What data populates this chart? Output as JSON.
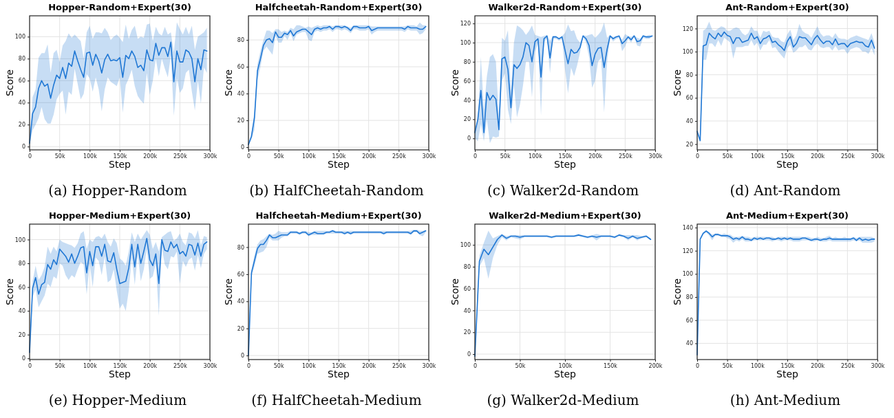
{
  "chart_data": [
    {
      "type": "line",
      "title": "Hopper-Random+Expert(30)",
      "xlabel": "Step",
      "ylabel": "Score",
      "annotations": [
        "(a) Hopper-Random"
      ],
      "grid": true,
      "xlim": [
        0,
        300000
      ],
      "ylim": [
        -3,
        119
      ],
      "xticks": [
        {
          "value": 0,
          "label": "0"
        },
        {
          "value": 50000,
          "label": "50k"
        },
        {
          "value": 100000,
          "label": "100k"
        },
        {
          "value": 150000,
          "label": "150k"
        },
        {
          "value": 200000,
          "label": "200k"
        },
        {
          "value": 250000,
          "label": "250k"
        },
        {
          "value": 300000,
          "label": "300k"
        }
      ],
      "yticks": [
        0,
        20,
        40,
        60,
        80,
        100
      ],
      "x": [
        0,
        5000,
        10000,
        15000,
        20000,
        25000,
        30000,
        35000,
        40000,
        45000,
        50000,
        55000,
        60000,
        65000,
        70000,
        75000,
        80000,
        85000,
        90000,
        95000,
        100000,
        105000,
        110000,
        115000,
        120000,
        125000,
        130000,
        135000,
        140000,
        145000,
        150000,
        155000,
        160000,
        165000,
        170000,
        175000,
        180000,
        185000,
        190000,
        195000,
        200000,
        205000,
        210000,
        215000,
        220000,
        225000,
        230000,
        235000,
        240000,
        245000,
        250000,
        255000,
        260000,
        265000,
        270000,
        275000,
        280000,
        285000,
        290000,
        295000
      ],
      "series": [
        {
          "color": "#1f77d4",
          "values": [
            3,
            30,
            36,
            53,
            60,
            55,
            57,
            44,
            56,
            65,
            62,
            72,
            62,
            76,
            73,
            87,
            78,
            70,
            63,
            85,
            86,
            74,
            84,
            78,
            67,
            79,
            84,
            78,
            79,
            78,
            81,
            63,
            83,
            80,
            87,
            82,
            72,
            74,
            69,
            88,
            79,
            78,
            94,
            83,
            90,
            90,
            82,
            95,
            59,
            87,
            77,
            77,
            88,
            86,
            80,
            59,
            80,
            70,
            88,
            87
          ],
          "upper": [
            4,
            45,
            52,
            81,
            85,
            85,
            93,
            67,
            85,
            88,
            77,
            92,
            96,
            103,
            99,
            102,
            99,
            96,
            80,
            104,
            110,
            98,
            104,
            104,
            103,
            108,
            104,
            97,
            100,
            102,
            99,
            95,
            111,
            98,
            106,
            110,
            98,
            100,
            99,
            111,
            112,
            96,
            109,
            103,
            101,
            109,
            102,
            104,
            86,
            113,
            107,
            102,
            109,
            102,
            110,
            88,
            100,
            102,
            104,
            108
          ],
          "lower": [
            2,
            15,
            20,
            26,
            36,
            25,
            21,
            21,
            29,
            43,
            48,
            51,
            29,
            50,
            47,
            71,
            57,
            43,
            48,
            66,
            62,
            50,
            63,
            52,
            32,
            52,
            63,
            59,
            57,
            55,
            63,
            31,
            56,
            62,
            70,
            55,
            46,
            42,
            39,
            67,
            47,
            60,
            80,
            64,
            80,
            71,
            63,
            83,
            28,
            62,
            49,
            53,
            67,
            70,
            50,
            33,
            60,
            39,
            72,
            67
          ]
        }
      ]
    },
    {
      "type": "line",
      "title": "Halfcheetah-Random+Expert(30)",
      "xlabel": "Step",
      "ylabel": "Score",
      "annotations": [
        "(b) HalfCheetah-Random"
      ],
      "grid": true,
      "xlim": [
        0,
        300000
      ],
      "ylim": [
        -2,
        98
      ],
      "xticks": [
        {
          "value": 0,
          "label": "0"
        },
        {
          "value": 50000,
          "label": "50k"
        },
        {
          "value": 100000,
          "label": "100k"
        },
        {
          "value": 150000,
          "label": "150k"
        },
        {
          "value": 200000,
          "label": "200k"
        },
        {
          "value": 250000,
          "label": "250k"
        },
        {
          "value": 300000,
          "label": "300k"
        }
      ],
      "yticks": [
        0,
        20,
        40,
        60,
        80
      ],
      "x": [
        0,
        5000,
        10000,
        15000,
        20000,
        25000,
        30000,
        35000,
        40000,
        45000,
        50000,
        55000,
        60000,
        65000,
        70000,
        75000,
        80000,
        85000,
        90000,
        95000,
        100000,
        105000,
        110000,
        115000,
        120000,
        125000,
        130000,
        135000,
        140000,
        145000,
        150000,
        155000,
        160000,
        165000,
        170000,
        175000,
        180000,
        185000,
        190000,
        195000,
        200000,
        205000,
        210000,
        215000,
        220000,
        225000,
        230000,
        235000,
        240000,
        245000,
        250000,
        255000,
        260000,
        265000,
        270000,
        275000,
        280000,
        285000,
        290000,
        295000
      ],
      "series": [
        {
          "color": "#1f77d4",
          "values": [
            2,
            8,
            22,
            57,
            66,
            76,
            80,
            81,
            78,
            86,
            82,
            82,
            85,
            84,
            87,
            83,
            86,
            87,
            88,
            88,
            86,
            84,
            88,
            89,
            88,
            89,
            89,
            90,
            88,
            90,
            90,
            89,
            90,
            89,
            87,
            90,
            90,
            89,
            89,
            89,
            90,
            87,
            88,
            89,
            89,
            89,
            89,
            89,
            89,
            89,
            89,
            89,
            88,
            90,
            89,
            89,
            89,
            88,
            88,
            90
          ],
          "upper": [
            3,
            10,
            27,
            62,
            72,
            80,
            87,
            87,
            85,
            88,
            88,
            86,
            87,
            86,
            89,
            88,
            91,
            91,
            90,
            89,
            90,
            89,
            90,
            91,
            90,
            91,
            91,
            91,
            90,
            91,
            91,
            91,
            91,
            90,
            89,
            91,
            91,
            91,
            91,
            91,
            91,
            90,
            90,
            90,
            90,
            90,
            90,
            90,
            90,
            90,
            90,
            90,
            90,
            91,
            91,
            91,
            90,
            93,
            91,
            91
          ],
          "lower": [
            1,
            6,
            13,
            50,
            60,
            72,
            75,
            72,
            69,
            83,
            78,
            78,
            83,
            80,
            85,
            79,
            84,
            85,
            86,
            86,
            80,
            79,
            86,
            87,
            86,
            87,
            87,
            88,
            86,
            88,
            88,
            87,
            88,
            87,
            85,
            88,
            88,
            87,
            87,
            87,
            88,
            84,
            86,
            87,
            87,
            87,
            87,
            87,
            87,
            87,
            87,
            87,
            86,
            88,
            87,
            87,
            87,
            84,
            85,
            88
          ]
        }
      ]
    },
    {
      "type": "line",
      "title": "Walker2d-Random+Expert(30)",
      "xlabel": "Step",
      "ylabel": "Score",
      "annotations": [
        "(c) Walker2d-Random"
      ],
      "grid": true,
      "xlim": [
        0,
        300000
      ],
      "ylim": [
        -12,
        128
      ],
      "xticks": [
        {
          "value": 0,
          "label": "0"
        },
        {
          "value": 50000,
          "label": "50k"
        },
        {
          "value": 100000,
          "label": "100k"
        },
        {
          "value": 150000,
          "label": "150k"
        },
        {
          "value": 200000,
          "label": "200k"
        },
        {
          "value": 250000,
          "label": "250k"
        },
        {
          "value": 300000,
          "label": "300k"
        }
      ],
      "yticks": [
        0,
        20,
        40,
        60,
        80,
        100,
        120
      ],
      "x": [
        0,
        5000,
        10000,
        15000,
        20000,
        25000,
        30000,
        35000,
        40000,
        45000,
        50000,
        55000,
        60000,
        65000,
        70000,
        75000,
        80000,
        85000,
        90000,
        95000,
        100000,
        105000,
        110000,
        115000,
        120000,
        125000,
        130000,
        135000,
        140000,
        145000,
        150000,
        155000,
        160000,
        165000,
        170000,
        175000,
        180000,
        185000,
        190000,
        195000,
        200000,
        205000,
        210000,
        215000,
        220000,
        225000,
        230000,
        235000,
        240000,
        245000,
        250000,
        255000,
        260000,
        265000,
        270000,
        275000,
        280000,
        285000,
        290000,
        295000
      ],
      "series": [
        {
          "color": "#1f77d4",
          "values": [
            6,
            20,
            50,
            6,
            48,
            40,
            45,
            41,
            9,
            83,
            85,
            72,
            32,
            77,
            73,
            77,
            85,
            100,
            97,
            80,
            101,
            104,
            64,
            104,
            107,
            84,
            106,
            106,
            104,
            106,
            92,
            78,
            93,
            89,
            90,
            95,
            107,
            104,
            97,
            76,
            88,
            94,
            95,
            74,
            93,
            107,
            104,
            106,
            107,
            99,
            102,
            106,
            103,
            107,
            101,
            102,
            107,
            106,
            106,
            107
          ],
          "upper": [
            7,
            22,
            85,
            30,
            65,
            85,
            88,
            80,
            20,
            105,
            102,
            113,
            50,
            100,
            118,
            116,
            113,
            108,
            112,
            118,
            108,
            107,
            106,
            107,
            108,
            102,
            107,
            107,
            105,
            107,
            110,
            119,
            112,
            113,
            104,
            100,
            108,
            107,
            108,
            109,
            105,
            108,
            112,
            121,
            105,
            108,
            106,
            107,
            107,
            103,
            109,
            107,
            106,
            108,
            105,
            104,
            108,
            107,
            108,
            107
          ],
          "lower": [
            0,
            -3,
            15,
            -3,
            20,
            -5,
            2,
            1,
            2,
            60,
            68,
            30,
            15,
            56,
            22,
            35,
            55,
            80,
            80,
            43,
            90,
            100,
            24,
            100,
            105,
            68,
            104,
            104,
            102,
            104,
            72,
            47,
            74,
            65,
            76,
            90,
            106,
            100,
            85,
            53,
            60,
            80,
            84,
            27,
            80,
            106,
            101,
            104,
            105,
            91,
            96,
            104,
            100,
            106,
            97,
            96,
            105,
            104,
            104,
            106
          ]
        }
      ]
    },
    {
      "type": "line",
      "title": "Ant-Random+Expert(30)",
      "xlabel": "Step",
      "ylabel": "Score",
      "annotations": [
        "(d) Ant-Random"
      ],
      "grid": true,
      "xlim": [
        0,
        300000
      ],
      "ylim": [
        15,
        131
      ],
      "xticks": [
        {
          "value": 0,
          "label": "0"
        },
        {
          "value": 50000,
          "label": "50k"
        },
        {
          "value": 100000,
          "label": "100k"
        },
        {
          "value": 150000,
          "label": "150k"
        },
        {
          "value": 200000,
          "label": "200k"
        },
        {
          "value": 250000,
          "label": "250k"
        },
        {
          "value": 300000,
          "label": "300k"
        }
      ],
      "yticks": [
        20,
        40,
        60,
        80,
        100,
        120
      ],
      "x": [
        0,
        5000,
        10000,
        15000,
        20000,
        25000,
        30000,
        35000,
        40000,
        45000,
        50000,
        55000,
        60000,
        65000,
        70000,
        75000,
        80000,
        85000,
        90000,
        95000,
        100000,
        105000,
        110000,
        115000,
        120000,
        125000,
        130000,
        135000,
        140000,
        145000,
        150000,
        155000,
        160000,
        165000,
        170000,
        175000,
        180000,
        185000,
        190000,
        195000,
        200000,
        205000,
        210000,
        215000,
        220000,
        225000,
        230000,
        235000,
        240000,
        245000,
        250000,
        255000,
        260000,
        265000,
        270000,
        275000,
        280000,
        285000,
        290000,
        295000
      ],
      "series": [
        {
          "color": "#1f77d4",
          "values": [
            31,
            23,
            105,
            106,
            116,
            113,
            111,
            116,
            113,
            117,
            114,
            113,
            107,
            112,
            112,
            108,
            109,
            110,
            116,
            111,
            113,
            107,
            111,
            112,
            114,
            108,
            109,
            106,
            104,
            101,
            109,
            113,
            104,
            107,
            113,
            112,
            112,
            109,
            106,
            111,
            114,
            110,
            107,
            109,
            109,
            106,
            111,
            106,
            107,
            107,
            104,
            107,
            108,
            109,
            108,
            108,
            105,
            104,
            110,
            103
          ],
          "upper": [
            32,
            24,
            118,
            120,
            126,
            119,
            118,
            120,
            122,
            121,
            118,
            118,
            120,
            121,
            120,
            116,
            114,
            116,
            122,
            118,
            118,
            112,
            118,
            117,
            118,
            113,
            112,
            112,
            109,
            108,
            115,
            119,
            110,
            114,
            124,
            118,
            116,
            115,
            112,
            117,
            122,
            116,
            113,
            114,
            114,
            112,
            116,
            112,
            111,
            111,
            110,
            112,
            113,
            114,
            113,
            112,
            111,
            110,
            116,
            108
          ],
          "lower": [
            29,
            21,
            93,
            93,
            107,
            107,
            104,
            110,
            105,
            112,
            110,
            108,
            94,
            104,
            104,
            104,
            105,
            105,
            110,
            105,
            108,
            101,
            106,
            106,
            110,
            103,
            104,
            100,
            97,
            94,
            103,
            106,
            99,
            101,
            104,
            104,
            106,
            102,
            101,
            105,
            107,
            104,
            103,
            104,
            104,
            101,
            105,
            101,
            102,
            102,
            98,
            102,
            103,
            104,
            103,
            100,
            100,
            98,
            103,
            97
          ]
        }
      ]
    },
    {
      "type": "line",
      "title": "Hopper-Medium+Expert(30)",
      "xlabel": "Step",
      "ylabel": "Score",
      "annotations": [
        "(e) Hopper-Medium"
      ],
      "grid": true,
      "xlim": [
        0,
        300000
      ],
      "ylim": [
        -1,
        113
      ],
      "xticks": [
        {
          "value": 0,
          "label": "0"
        },
        {
          "value": 50000,
          "label": "50k"
        },
        {
          "value": 100000,
          "label": "100k"
        },
        {
          "value": 150000,
          "label": "150k"
        },
        {
          "value": 200000,
          "label": "200k"
        },
        {
          "value": 250000,
          "label": "250k"
        },
        {
          "value": 300000,
          "label": "300k"
        }
      ],
      "yticks": [
        0,
        20,
        40,
        60,
        80,
        100
      ],
      "x": [
        0,
        5000,
        10000,
        15000,
        20000,
        25000,
        30000,
        35000,
        40000,
        45000,
        50000,
        55000,
        60000,
        65000,
        70000,
        75000,
        80000,
        85000,
        90000,
        95000,
        100000,
        105000,
        110000,
        115000,
        120000,
        125000,
        130000,
        135000,
        140000,
        145000,
        150000,
        155000,
        160000,
        165000,
        170000,
        175000,
        180000,
        185000,
        190000,
        195000,
        200000,
        205000,
        210000,
        215000,
        220000,
        225000,
        230000,
        235000,
        240000,
        245000,
        250000,
        255000,
        260000,
        265000,
        270000,
        275000,
        280000,
        285000,
        290000,
        295000
      ],
      "series": [
        {
          "color": "#1f77d4",
          "values": [
            5,
            59,
            68,
            54,
            62,
            64,
            79,
            75,
            83,
            79,
            92,
            89,
            86,
            81,
            88,
            80,
            86,
            93,
            94,
            72,
            90,
            78,
            94,
            94,
            86,
            96,
            82,
            81,
            89,
            75,
            63,
            64,
            65,
            76,
            96,
            77,
            96,
            80,
            90,
            101,
            83,
            78,
            88,
            63,
            100,
            91,
            90,
            98,
            93,
            96,
            88,
            90,
            86,
            96,
            95,
            87,
            97,
            86,
            96,
            98
          ],
          "upper": [
            6,
            65,
            78,
            66,
            70,
            77,
            94,
            88,
            94,
            90,
            100,
            98,
            97,
            96,
            95,
            93,
            97,
            105,
            107,
            92,
            100,
            98,
            102,
            103,
            101,
            105,
            98,
            94,
            101,
            97,
            84,
            82,
            78,
            90,
            106,
            98,
            105,
            100,
            104,
            108,
            104,
            92,
            98,
            90,
            102,
            104,
            106,
            107,
            99,
            101,
            105,
            98,
            95,
            106,
            105,
            101,
            108,
            95,
            103,
            102
          ],
          "lower": [
            4,
            52,
            58,
            43,
            48,
            53,
            63,
            60,
            69,
            67,
            80,
            78,
            70,
            66,
            70,
            68,
            75,
            81,
            79,
            54,
            80,
            60,
            85,
            82,
            70,
            86,
            64,
            66,
            75,
            57,
            42,
            46,
            40,
            57,
            85,
            62,
            87,
            65,
            75,
            92,
            67,
            69,
            80,
            36,
            93,
            79,
            75,
            86,
            85,
            90,
            63,
            82,
            77,
            83,
            85,
            74,
            87,
            76,
            88,
            92
          ]
        }
      ]
    },
    {
      "type": "line",
      "title": "Halfcheetah-Medium+Expert(30)",
      "xlabel": "Step",
      "ylabel": "Score",
      "annotations": [
        "(f) HalfCheetah-Medium"
      ],
      "grid": true,
      "xlim": [
        0,
        300000
      ],
      "ylim": [
        -3,
        97
      ],
      "xticks": [
        {
          "value": 0,
          "label": "0"
        },
        {
          "value": 50000,
          "label": "50k"
        },
        {
          "value": 100000,
          "label": "100k"
        },
        {
          "value": 150000,
          "label": "150k"
        },
        {
          "value": 200000,
          "label": "200k"
        },
        {
          "value": 250000,
          "label": "250k"
        },
        {
          "value": 300000,
          "label": "300k"
        }
      ],
      "yticks": [
        0,
        20,
        40,
        60,
        80
      ],
      "x": [
        0,
        5000,
        10000,
        15000,
        20000,
        25000,
        30000,
        35000,
        40000,
        45000,
        50000,
        55000,
        60000,
        65000,
        70000,
        75000,
        80000,
        85000,
        90000,
        95000,
        100000,
        105000,
        110000,
        115000,
        120000,
        125000,
        130000,
        135000,
        140000,
        145000,
        150000,
        155000,
        160000,
        165000,
        170000,
        175000,
        180000,
        185000,
        190000,
        195000,
        200000,
        205000,
        210000,
        215000,
        220000,
        225000,
        230000,
        235000,
        240000,
        245000,
        250000,
        255000,
        260000,
        265000,
        270000,
        275000,
        280000,
        285000,
        290000,
        295000
      ],
      "series": [
        {
          "color": "#1f77d4",
          "values": [
            0,
            61,
            70,
            79,
            82,
            82,
            85,
            89,
            87,
            87,
            88,
            89,
            89,
            89,
            91,
            91,
            91,
            90,
            91,
            91,
            89,
            90,
            91,
            90,
            90,
            90,
            91,
            91,
            92,
            91,
            91,
            91,
            90,
            91,
            90,
            91,
            91,
            91,
            91,
            91,
            91,
            91,
            91,
            91,
            91,
            90,
            91,
            91,
            91,
            91,
            91,
            91,
            91,
            91,
            90,
            92,
            92,
            90,
            91,
            92
          ],
          "upper": [
            1,
            63,
            74,
            82,
            85,
            86,
            88,
            90,
            89,
            90,
            92,
            91,
            91,
            91,
            92,
            92,
            92,
            91,
            92,
            92,
            91,
            91,
            92,
            92,
            92,
            92,
            92,
            92,
            93,
            92,
            92,
            92,
            92,
            92,
            92,
            92,
            92,
            92,
            92,
            92,
            92,
            92,
            92,
            92,
            92,
            92,
            92,
            92,
            92,
            92,
            92,
            92,
            92,
            92,
            92,
            93,
            93,
            92,
            92,
            93
          ],
          "lower": [
            0,
            58,
            66,
            75,
            76,
            77,
            80,
            87,
            85,
            85,
            85,
            87,
            88,
            88,
            90,
            90,
            90,
            89,
            90,
            90,
            88,
            89,
            89,
            89,
            89,
            89,
            90,
            90,
            90,
            90,
            90,
            90,
            89,
            90,
            89,
            90,
            90,
            90,
            90,
            90,
            90,
            90,
            90,
            90,
            90,
            89,
            90,
            90,
            90,
            90,
            90,
            90,
            90,
            90,
            89,
            91,
            91,
            89,
            88,
            91
          ]
        }
      ]
    },
    {
      "type": "line",
      "title": "Walker2d-Medium+Expert(30)",
      "xlabel": "Step",
      "ylabel": "Score",
      "annotations": [
        "(g) Walker2d-Medium"
      ],
      "grid": true,
      "xlim": [
        0,
        200000
      ],
      "ylim": [
        -5,
        119
      ],
      "xticks": [
        {
          "value": 0,
          "label": "0"
        },
        {
          "value": 50000,
          "label": "50k"
        },
        {
          "value": 100000,
          "label": "100k"
        },
        {
          "value": 150000,
          "label": "150k"
        },
        {
          "value": 200000,
          "label": "200k"
        }
      ],
      "yticks": [
        0,
        20,
        40,
        60,
        80,
        100
      ],
      "x": [
        0,
        5000,
        10000,
        15000,
        20000,
        25000,
        30000,
        35000,
        40000,
        45000,
        50000,
        55000,
        60000,
        65000,
        70000,
        75000,
        80000,
        85000,
        90000,
        95000,
        100000,
        105000,
        110000,
        115000,
        120000,
        125000,
        130000,
        135000,
        140000,
        145000,
        150000,
        155000,
        160000,
        165000,
        170000,
        175000,
        180000,
        185000,
        190000,
        195000
      ],
      "series": [
        {
          "color": "#1f77d4",
          "values": [
            -2,
            85,
            96,
            91,
            98,
            105,
            109,
            106,
            108,
            108,
            107,
            108,
            108,
            108,
            108,
            108,
            108,
            107,
            108,
            108,
            108,
            108,
            108,
            109,
            108,
            107,
            108,
            107,
            108,
            108,
            108,
            107,
            109,
            108,
            106,
            108,
            106,
            107,
            108,
            105
          ],
          "upper": [
            -1,
            90,
            102,
            113,
            106,
            108,
            110,
            108,
            109,
            109,
            109,
            109,
            109,
            109,
            109,
            109,
            109,
            108,
            109,
            109,
            109,
            109,
            109,
            110,
            109,
            108,
            109,
            110,
            109,
            109,
            109,
            108,
            110,
            109,
            109,
            109,
            109,
            108,
            109,
            106
          ],
          "lower": [
            -3,
            80,
            88,
            69,
            88,
            100,
            107,
            104,
            107,
            106,
            105,
            107,
            107,
            107,
            107,
            107,
            107,
            106,
            107,
            107,
            107,
            107,
            107,
            108,
            107,
            106,
            107,
            104,
            107,
            107,
            107,
            106,
            108,
            107,
            104,
            107,
            104,
            106,
            107,
            104
          ]
        }
      ]
    },
    {
      "type": "line",
      "title": "Ant-Medium+Expert(30)",
      "xlabel": "Step",
      "ylabel": "Score",
      "annotations": [
        "(h) Ant-Medium"
      ],
      "grid": true,
      "xlim": [
        0,
        300000
      ],
      "ylim": [
        26,
        143
      ],
      "xticks": [
        {
          "value": 0,
          "label": "0"
        },
        {
          "value": 50000,
          "label": "50k"
        },
        {
          "value": 100000,
          "label": "100k"
        },
        {
          "value": 150000,
          "label": "150k"
        },
        {
          "value": 200000,
          "label": "200k"
        },
        {
          "value": 250000,
          "label": "250k"
        },
        {
          "value": 300000,
          "label": "300k"
        }
      ],
      "yticks": [
        40,
        60,
        80,
        100,
        120,
        140
      ],
      "x": [
        0,
        5000,
        10000,
        15000,
        20000,
        25000,
        30000,
        35000,
        40000,
        45000,
        50000,
        55000,
        60000,
        65000,
        70000,
        75000,
        80000,
        85000,
        90000,
        95000,
        100000,
        105000,
        110000,
        115000,
        120000,
        125000,
        130000,
        135000,
        140000,
        145000,
        150000,
        155000,
        160000,
        165000,
        170000,
        175000,
        180000,
        185000,
        190000,
        195000,
        200000,
        205000,
        210000,
        215000,
        220000,
        225000,
        230000,
        235000,
        240000,
        245000,
        250000,
        255000,
        260000,
        265000,
        270000,
        275000,
        280000,
        285000,
        290000,
        295000
      ],
      "series": [
        {
          "color": "#1f77d4",
          "values": [
            30,
            130,
            135,
            137,
            135,
            132,
            134,
            134,
            133,
            133,
            133,
            132,
            130,
            131,
            130,
            132,
            130,
            130,
            129,
            131,
            130,
            131,
            130,
            131,
            131,
            130,
            130,
            131,
            130,
            131,
            130,
            131,
            130,
            130,
            130,
            131,
            131,
            130,
            129,
            130,
            130,
            129,
            130,
            130,
            131,
            130,
            130,
            130,
            130,
            130,
            130,
            130,
            131,
            129,
            131,
            129,
            130,
            129,
            130,
            130
          ],
          "upper": [
            31,
            131,
            136,
            138,
            136,
            134,
            135,
            135,
            134,
            135,
            134,
            134,
            132,
            132,
            132,
            133,
            132,
            132,
            131,
            132,
            132,
            132,
            132,
            132,
            132,
            132,
            131,
            132,
            132,
            132,
            132,
            132,
            132,
            132,
            132,
            132,
            132,
            132,
            131,
            131,
            132,
            131,
            131,
            132,
            133,
            131,
            132,
            131,
            131,
            132,
            131,
            131,
            132,
            131,
            132,
            132,
            132,
            132,
            132,
            131
          ],
          "lower": [
            29,
            129,
            134,
            136,
            133,
            129,
            133,
            133,
            132,
            132,
            131,
            130,
            127,
            129,
            128,
            130,
            128,
            128,
            128,
            129,
            129,
            129,
            129,
            129,
            129,
            128,
            129,
            129,
            128,
            129,
            129,
            129,
            128,
            128,
            128,
            129,
            129,
            129,
            128,
            128,
            129,
            128,
            128,
            128,
            129,
            128,
            128,
            128,
            128,
            128,
            128,
            128,
            129,
            128,
            129,
            127,
            127,
            127,
            127,
            128
          ]
        }
      ]
    }
  ]
}
